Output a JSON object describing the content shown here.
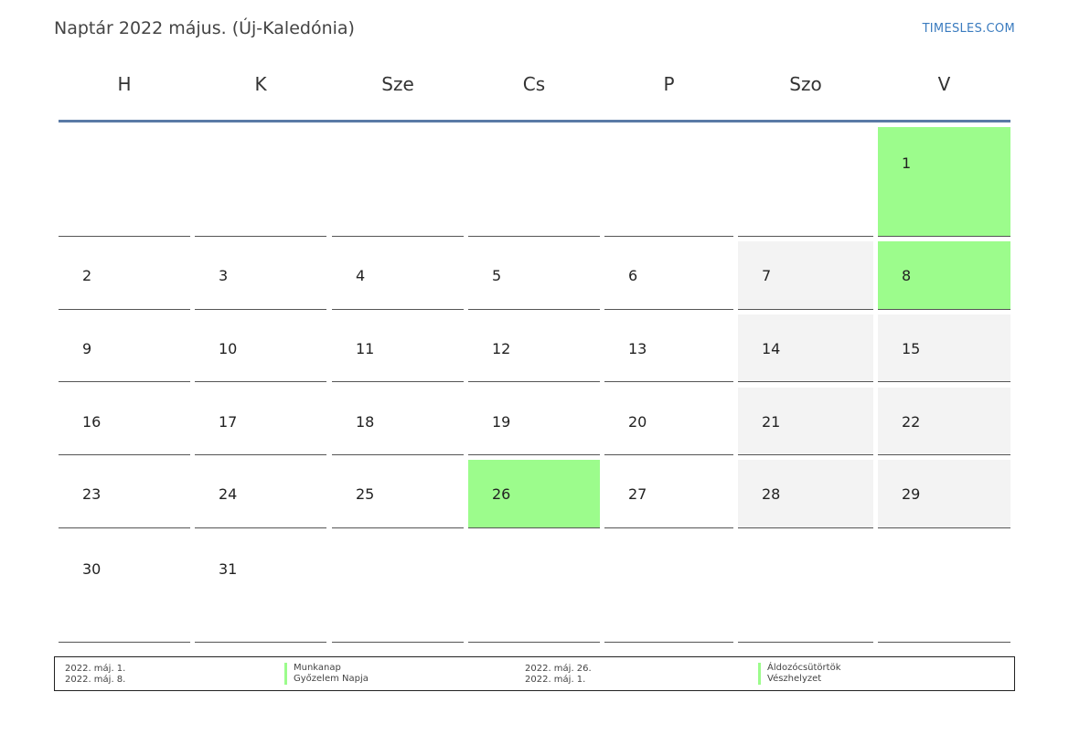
{
  "header": {
    "title": "Naptár 2022 május. (Új-Kaledónia)",
    "site": "TIMESLES.COM"
  },
  "weekdays": [
    "H",
    "K",
    "Sze",
    "Cs",
    "P",
    "Szo",
    "V"
  ],
  "weeks": [
    [
      {
        "day": "",
        "type": "blank"
      },
      {
        "day": "",
        "type": "blank"
      },
      {
        "day": "",
        "type": "blank"
      },
      {
        "day": "",
        "type": "blank"
      },
      {
        "day": "",
        "type": "blank"
      },
      {
        "day": "",
        "type": "blank"
      },
      {
        "day": "1",
        "type": "holiday"
      }
    ],
    [
      {
        "day": "2",
        "type": "normal"
      },
      {
        "day": "3",
        "type": "normal"
      },
      {
        "day": "4",
        "type": "normal"
      },
      {
        "day": "5",
        "type": "normal"
      },
      {
        "day": "6",
        "type": "normal"
      },
      {
        "day": "7",
        "type": "weekend"
      },
      {
        "day": "8",
        "type": "holiday"
      }
    ],
    [
      {
        "day": "9",
        "type": "normal"
      },
      {
        "day": "10",
        "type": "normal"
      },
      {
        "day": "11",
        "type": "normal"
      },
      {
        "day": "12",
        "type": "normal"
      },
      {
        "day": "13",
        "type": "normal"
      },
      {
        "day": "14",
        "type": "weekend"
      },
      {
        "day": "15",
        "type": "weekend"
      }
    ],
    [
      {
        "day": "16",
        "type": "normal"
      },
      {
        "day": "17",
        "type": "normal"
      },
      {
        "day": "18",
        "type": "normal"
      },
      {
        "day": "19",
        "type": "normal"
      },
      {
        "day": "20",
        "type": "normal"
      },
      {
        "day": "21",
        "type": "weekend"
      },
      {
        "day": "22",
        "type": "weekend"
      }
    ],
    [
      {
        "day": "23",
        "type": "normal"
      },
      {
        "day": "24",
        "type": "normal"
      },
      {
        "day": "25",
        "type": "normal"
      },
      {
        "day": "26",
        "type": "holiday"
      },
      {
        "day": "27",
        "type": "normal"
      },
      {
        "day": "28",
        "type": "weekend"
      },
      {
        "day": "29",
        "type": "weekend"
      }
    ],
    [
      {
        "day": "30",
        "type": "normal"
      },
      {
        "day": "31",
        "type": "normal"
      },
      {
        "day": "",
        "type": "blank"
      },
      {
        "day": "",
        "type": "blank"
      },
      {
        "day": "",
        "type": "blank"
      },
      {
        "day": "",
        "type": "blank"
      },
      {
        "day": "",
        "type": "blank"
      }
    ]
  ],
  "legend": [
    {
      "date": "2022. máj. 1.",
      "name": "Munkanap"
    },
    {
      "date": "2022. máj. 8.",
      "name": "Győzelem Napja"
    },
    {
      "date": "2022. máj. 26.",
      "name": "Áldozócsütörtök"
    },
    {
      "date": "2022. máj. 1.",
      "name": "Vészhelyzet"
    }
  ],
  "colors": {
    "holiday": "#9cfc8c",
    "weekend": "#f3f3f3",
    "header_rule": "#5a7aa6",
    "link": "#3a7bbf"
  }
}
